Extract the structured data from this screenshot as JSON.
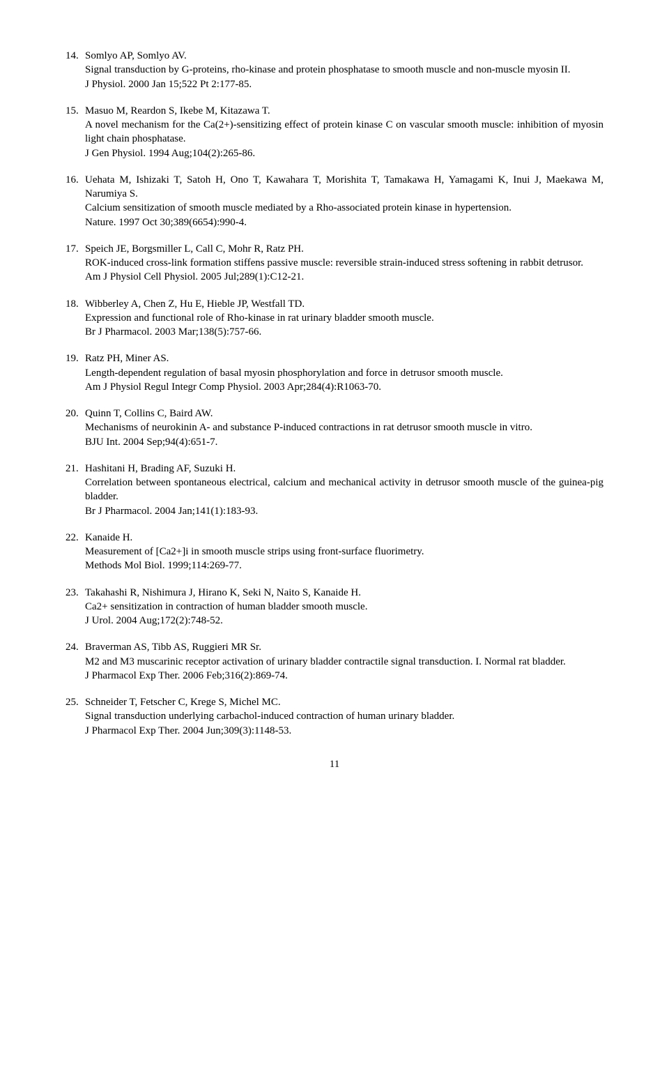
{
  "references": [
    {
      "num": "14.",
      "authors": "Somlyo AP, Somlyo AV.",
      "title": "Signal transduction by G-proteins, rho-kinase and protein phosphatase to smooth muscle and non-muscle myosin II.",
      "journal": "J Physiol. 2000 Jan 15;522 Pt 2:177-85."
    },
    {
      "num": "15.",
      "authors": "Masuo M, Reardon S, Ikebe M, Kitazawa T.",
      "title": "A novel mechanism for the Ca(2+)-sensitizing effect of protein kinase C on vascular smooth muscle: inhibition of myosin light chain phosphatase.",
      "journal": "J Gen Physiol. 1994 Aug;104(2):265-86."
    },
    {
      "num": "16.",
      "authors": "Uehata M, Ishizaki T, Satoh H, Ono T, Kawahara T, Morishita T, Tamakawa H, Yamagami K, Inui J, Maekawa M, Narumiya S.",
      "title": "Calcium sensitization of smooth muscle mediated by a Rho-associated protein kinase in hypertension.",
      "journal": "Nature. 1997 Oct 30;389(6654):990-4."
    },
    {
      "num": "17.",
      "authors": "Speich JE, Borgsmiller L, Call C, Mohr R, Ratz PH.",
      "title": "ROK-induced cross-link formation stiffens passive muscle: reversible strain-induced stress softening in rabbit detrusor.",
      "journal": "Am J Physiol Cell Physiol. 2005 Jul;289(1):C12-21."
    },
    {
      "num": "18.",
      "authors": "Wibberley A, Chen Z, Hu E, Hieble JP, Westfall TD.",
      "title": "Expression and functional role of Rho-kinase in rat urinary bladder smooth muscle.",
      "journal": "Br J Pharmacol. 2003 Mar;138(5):757-66."
    },
    {
      "num": "19.",
      "authors": "Ratz PH, Miner AS.",
      "title": "Length-dependent regulation of basal myosin phosphorylation and force in detrusor smooth muscle.",
      "journal": "Am J Physiol Regul Integr Comp Physiol. 2003 Apr;284(4):R1063-70."
    },
    {
      "num": "20.",
      "authors": "Quinn T, Collins C, Baird AW.",
      "title": "Mechanisms of neurokinin A- and substance P-induced contractions in rat detrusor  smooth muscle in vitro.",
      "journal": "BJU Int. 2004 Sep;94(4):651-7."
    },
    {
      "num": "21.",
      "authors": "Hashitani H, Brading AF, Suzuki H.",
      "title": "Correlation between spontaneous electrical, calcium and mechanical activity in detrusor smooth muscle of the guinea-pig bladder.",
      "journal": "Br J Pharmacol. 2004 Jan;141(1):183-93."
    },
    {
      "num": "22.",
      "authors": "Kanaide H.",
      "title": "Measurement of [Ca2+]i in smooth muscle strips using front-surface fluorimetry.",
      "journal": "Methods Mol Biol. 1999;114:269-77."
    },
    {
      "num": "23.",
      "authors": "Takahashi R, Nishimura J, Hirano K, Seki N, Naito S, Kanaide H.",
      "title": "Ca2+ sensitization in contraction of human bladder smooth muscle.",
      "journal": "J Urol. 2004 Aug;172(2):748-52."
    },
    {
      "num": "24.",
      "authors": "Braverman AS, Tibb AS, Ruggieri MR Sr.",
      "title": "M2 and M3 muscarinic receptor activation of urinary bladder contractile signal transduction. I. Normal rat bladder.",
      "journal": "J Pharmacol Exp Ther. 2006 Feb;316(2):869-74."
    },
    {
      "num": "25.",
      "authors": "Schneider T, Fetscher C, Krege S, Michel MC.",
      "title": "Signal transduction underlying carbachol-induced contraction of human urinary bladder.",
      "journal": "J Pharmacol Exp Ther. 2004 Jun;309(3):1148-53."
    }
  ],
  "page_number": "11"
}
